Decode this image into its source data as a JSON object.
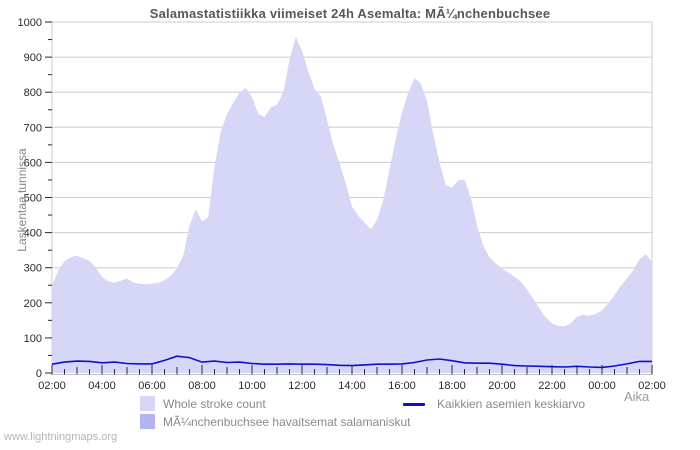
{
  "header": {
    "title": "Salamastatistiikka viimeiset 24h Asemalta: MÃ¼nchenbuchsee"
  },
  "axes": {
    "y_label": "Laskentaa tunnissa",
    "x_label": "Aika",
    "y_ticks": [
      0,
      100,
      200,
      300,
      400,
      500,
      600,
      700,
      800,
      900,
      1000
    ],
    "x_ticks": [
      "02:00",
      "04:00",
      "06:00",
      "08:00",
      "10:00",
      "12:00",
      "14:00",
      "16:00",
      "18:00",
      "20:00",
      "22:00",
      "00:00",
      "02:00"
    ]
  },
  "watermark": "www.lightningmaps.org",
  "colors": {
    "whole_area": "#d6d6f6",
    "station_area": "#b4b4f1",
    "average_line": "#1010cc",
    "grid": "#cdcdcd",
    "axis_frame": "#c2c2c2",
    "tick": "#2a2a2a"
  },
  "legend": [
    {
      "label": "Whole stroke count",
      "type": "area",
      "color": "#d6d6f6"
    },
    {
      "label": "Kaikkien asemien keskiarvo",
      "type": "line",
      "color": "#1010cc"
    },
    {
      "label": "MÃ¼nchenbuchsee havaitsemat salamaniskut",
      "type": "area",
      "color": "#b4b4f1"
    }
  ],
  "chart_data": {
    "type": "area",
    "title": "Salamastatistiikka viimeiset 24h Asemalta: MÃ¼nchenbuchsee",
    "xlabel": "Aika",
    "ylabel": "Laskentaa tunnissa",
    "ylim": [
      0,
      1000
    ],
    "grid": true,
    "legend_position": "bottom",
    "x_start": "02:00",
    "x_end": "02:00",
    "x_span_hours": 24,
    "series": [
      {
        "name": "Whole stroke count",
        "type": "area",
        "color": "#d6d6f6",
        "interval_minutes": 15,
        "start": "02:00",
        "values": [
          248,
          292,
          318,
          330,
          334,
          327,
          320,
          300,
          274,
          261,
          257,
          263,
          269,
          258,
          254,
          253,
          254,
          257,
          264,
          277,
          298,
          335,
          420,
          466,
          432,
          444,
          590,
          688,
          738,
          770,
          798,
          812,
          786,
          738,
          729,
          757,
          764,
          800,
          892,
          958,
          918,
          858,
          810,
          788,
          722,
          650,
          598,
          540,
          474,
          448,
          428,
          410,
          436,
          492,
          580,
          668,
          742,
          800,
          840,
          825,
          775,
          680,
          600,
          536,
          528,
          549,
          550,
          500,
          420,
          362,
          330,
          312,
          298,
          286,
          274,
          260,
          238,
          210,
          183,
          158,
          141,
          134,
          133,
          142,
          160,
          166,
          163,
          169,
          178,
          198,
          222,
          248,
          270,
          293,
          324,
          338,
          318
        ]
      },
      {
        "name": "MÃ¼nchenbuchsee havaitsemat salamaniskut",
        "type": "area",
        "color": "#b4b4f1",
        "interval_minutes": 60,
        "start": "02:00",
        "values": [
          0,
          0,
          0,
          0,
          0,
          0,
          0,
          0,
          0,
          0,
          0,
          0,
          0,
          0,
          0,
          0,
          0,
          0,
          0,
          0,
          0,
          0,
          0,
          0,
          0
        ]
      },
      {
        "name": "Kaikkien asemien keskiarvo",
        "type": "line",
        "color": "#1010cc",
        "interval_minutes": 30,
        "start": "02:00",
        "values": [
          25,
          31,
          34,
          33,
          29,
          31,
          27,
          26,
          26,
          36,
          48,
          44,
          31,
          34,
          30,
          31,
          27,
          25,
          25,
          26,
          25,
          25,
          24,
          22,
          21,
          23,
          25,
          25,
          26,
          30,
          37,
          40,
          35,
          29,
          28,
          28,
          25,
          21,
          20,
          19,
          18,
          17,
          19,
          17,
          16,
          20,
          26,
          33,
          33
        ]
      }
    ]
  }
}
